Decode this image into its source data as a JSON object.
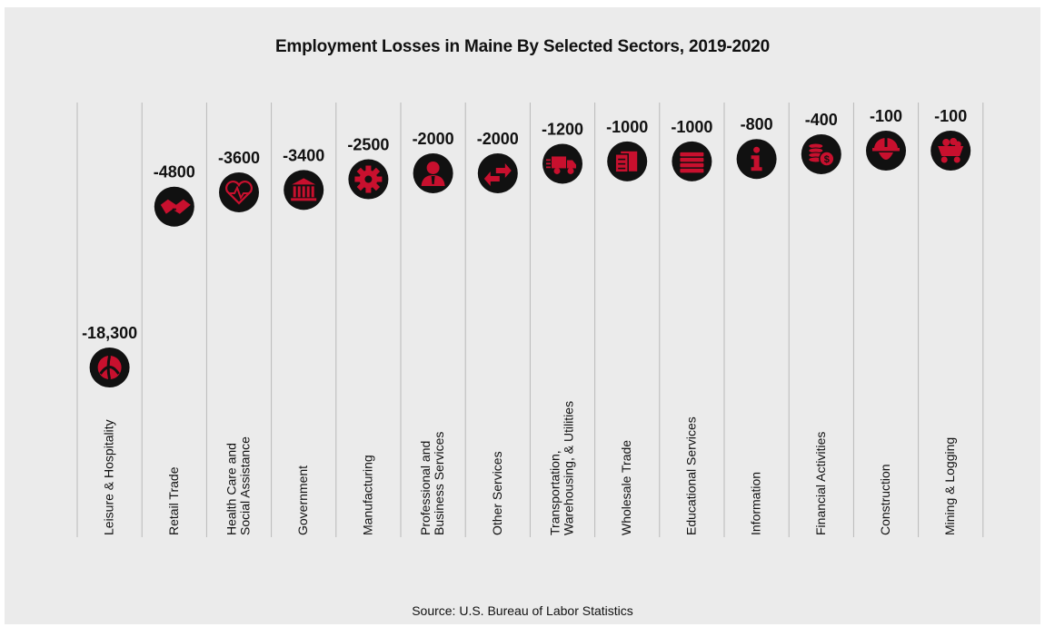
{
  "title": "Employment Losses in Maine By Selected Sectors, 2019-2020",
  "source": "Source: U.S. Bureau of Labor Statistics",
  "colors": {
    "icon_fill": "#111111",
    "icon_glyph": "#c8102e",
    "panel": "#ebebeb"
  },
  "chart_data": {
    "type": "scatter",
    "title": "Employment Losses in Maine By Selected Sectors, 2019-2020",
    "xlabel": "",
    "ylabel": "",
    "categories": [
      "Leisure & Hospitality",
      "Retail Trade",
      "Health Care and Social Assistance",
      "Government",
      "Manufacturing",
      "Professional and Business Services",
      "Other Services",
      "Transportation, Warehousing, & Utilities",
      "Wholesale Trade",
      "Educational Services",
      "Information",
      "Financial Activities",
      "Construction",
      "Mining & Logging"
    ],
    "category_lines": [
      [
        "Leisure & Hospitality"
      ],
      [
        "Retail Trade"
      ],
      [
        "Health Care and",
        "Social Assistance"
      ],
      [
        "Government"
      ],
      [
        "Manufacturing"
      ],
      [
        "Professional and",
        "Business Services"
      ],
      [
        "Other Services"
      ],
      [
        "Transportation,",
        "Warehousing, & Utilities"
      ],
      [
        "Wholesale Trade"
      ],
      [
        "Educational Services"
      ],
      [
        "Information"
      ],
      [
        "Financial Activities"
      ],
      [
        "Construction"
      ],
      [
        "Mining & Logging"
      ]
    ],
    "values": [
      -18300,
      -4800,
      -3600,
      -3400,
      -2500,
      -2000,
      -2000,
      -1200,
      -1000,
      -1000,
      -800,
      -400,
      -100,
      -100
    ],
    "value_labels": [
      "-18,300",
      "-4800",
      "-3600",
      "-3400",
      "-2500",
      "-2000",
      "-2000",
      "-1200",
      "-1000",
      "-1000",
      "-800",
      "-400",
      "-100",
      "-100"
    ],
    "icons": [
      "beach-ball-icon",
      "handshake-icon",
      "heart-pulse-icon",
      "bank-icon",
      "gear-icon",
      "businessperson-icon",
      "arrows-exchange-icon",
      "delivery-truck-icon",
      "clipboard-icon",
      "books-icon",
      "info-icon",
      "coins-icon",
      "hard-hat-icon",
      "mine-cart-icon"
    ],
    "grid": false,
    "legend": "none"
  }
}
